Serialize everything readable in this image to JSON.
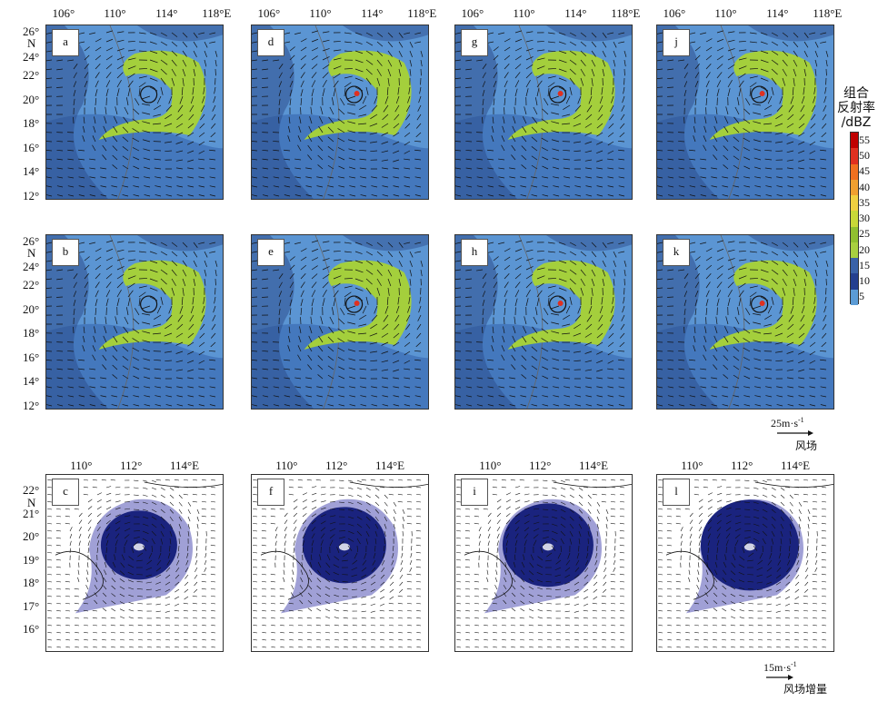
{
  "top_grid": {
    "lon_labels": [
      "106°",
      "110°",
      "114°",
      "118°E"
    ],
    "lat_labels": [
      "26°",
      "24°",
      "22°",
      "20°",
      "18°",
      "16°",
      "14°",
      "12°"
    ],
    "lat_N": "N",
    "panels_row1": [
      "a",
      "d",
      "g",
      "j"
    ],
    "panels_row2": [
      "b",
      "e",
      "h",
      "k"
    ]
  },
  "bottom_grid": {
    "lon_labels": [
      "110°",
      "112°",
      "114°E"
    ],
    "lat_labels": [
      "22°",
      "21°",
      "20°",
      "19°",
      "18°",
      "17°",
      "16°"
    ],
    "lat_N": "N",
    "panels": [
      "c",
      "f",
      "i",
      "l"
    ]
  },
  "colorbar": {
    "title_lines": [
      "组合",
      "反射率",
      "/dBZ"
    ],
    "levels": [
      "55",
      "50",
      "45",
      "40",
      "35",
      "30",
      "25",
      "20",
      "15",
      "10",
      "5"
    ],
    "colors": [
      "#c00000",
      "#e03020",
      "#f07020",
      "#f0a030",
      "#f0d040",
      "#c8d838",
      "#90c030",
      "#a8d040",
      "#3a62a8",
      "#243f8f",
      "#5b9bd5"
    ]
  },
  "wind_scale": {
    "speed": "25m·s",
    "exp": "-1",
    "name": "风场"
  },
  "wind_inc_scale": {
    "speed": "15m·s",
    "exp": "-1",
    "name": "风场增量"
  },
  "colors": {
    "ocean": "#5b95d3",
    "dark": "#2d4e8e",
    "green": "#a4cf3c",
    "inc": "#8080c8",
    "incdark": "#1a237e"
  }
}
